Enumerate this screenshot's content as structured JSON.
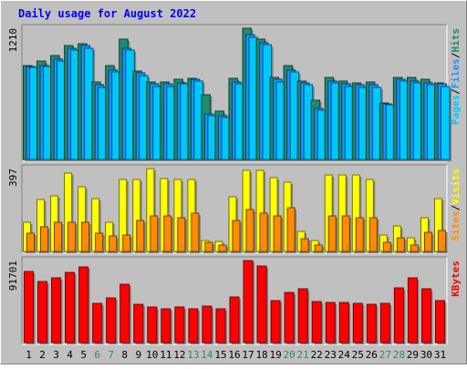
{
  "title": "Daily usage for August 2022",
  "colors": {
    "background": "#c0c0c0",
    "title": "#0000ff",
    "hits": "#1e8c6e",
    "files": "#1e90ff",
    "pages": "#00c8ff",
    "visits": "#ffff00",
    "sites": "#ff8c00",
    "kbytes": "#ff0000",
    "weekday_label": "#000000",
    "weekend_label": "#2e8b57"
  },
  "chart_data": [
    {
      "type": "bar",
      "panel": "hits-files-pages",
      "ymax_label": "1210",
      "legend": [
        "Pages",
        "/",
        "Files",
        "/",
        "Hits"
      ],
      "categories": [
        "1",
        "2",
        "3",
        "4",
        "5",
        "6",
        "7",
        "8",
        "9",
        "10",
        "11",
        "12",
        "13",
        "14",
        "15",
        "16",
        "17",
        "18",
        "19",
        "20",
        "21",
        "22",
        "23",
        "24",
        "25",
        "26",
        "27",
        "28",
        "29",
        "30",
        "31"
      ],
      "weekend_days": [
        "6",
        "7",
        "13",
        "14",
        "20",
        "21",
        "27",
        "28"
      ],
      "series": [
        {
          "name": "Hits",
          "values": [
            860,
            900,
            950,
            1040,
            1060,
            710,
            860,
            1100,
            810,
            710,
            710,
            730,
            740,
            590,
            440,
            740,
            1200,
            1100,
            750,
            860,
            720,
            540,
            750,
            720,
            700,
            710,
            520,
            750,
            750,
            730,
            700
          ]
        },
        {
          "name": "Files",
          "values": [
            850,
            860,
            920,
            1020,
            1040,
            680,
            820,
            1020,
            790,
            690,
            690,
            700,
            730,
            420,
            400,
            710,
            1140,
            1070,
            730,
            820,
            700,
            470,
            720,
            690,
            680,
            680,
            510,
            730,
            720,
            700,
            690
          ]
        },
        {
          "name": "Pages",
          "values": [
            840,
            850,
            900,
            1000,
            1020,
            660,
            800,
            1000,
            770,
            670,
            670,
            690,
            720,
            400,
            380,
            690,
            1120,
            1050,
            710,
            800,
            680,
            450,
            700,
            670,
            660,
            660,
            500,
            720,
            700,
            680,
            670
          ]
        }
      ]
    },
    {
      "type": "bar",
      "panel": "visits-sites",
      "ymax_label": "397",
      "legend": [
        "Sites",
        "/",
        "Visits"
      ],
      "categories": [
        "1",
        "2",
        "3",
        "4",
        "5",
        "6",
        "7",
        "8",
        "9",
        "10",
        "11",
        "12",
        "13",
        "14",
        "15",
        "16",
        "17",
        "18",
        "19",
        "20",
        "21",
        "22",
        "23",
        "24",
        "25",
        "26",
        "27",
        "28",
        "29",
        "30",
        "31"
      ],
      "series": [
        {
          "name": "Visits",
          "values": [
            130,
            230,
            250,
            350,
            290,
            235,
            130,
            320,
            320,
            370,
            325,
            320,
            320,
            50,
            45,
            245,
            360,
            360,
            330,
            310,
            90,
            50,
            340,
            340,
            340,
            320,
            75,
            115,
            60,
            150,
            235
          ]
        },
        {
          "name": "Sites",
          "values": [
            80,
            110,
            130,
            130,
            130,
            80,
            70,
            75,
            140,
            160,
            160,
            150,
            170,
            40,
            30,
            140,
            185,
            170,
            160,
            195,
            55,
            30,
            160,
            160,
            150,
            150,
            40,
            60,
            30,
            85,
            95
          ]
        }
      ]
    },
    {
      "type": "bar",
      "panel": "kbytes",
      "ymax_label": "91701",
      "legend": [
        "KBytes"
      ],
      "categories": [
        "1",
        "2",
        "3",
        "4",
        "5",
        "6",
        "7",
        "8",
        "9",
        "10",
        "11",
        "12",
        "13",
        "14",
        "15",
        "16",
        "17",
        "18",
        "19",
        "20",
        "21",
        "22",
        "23",
        "24",
        "25",
        "26",
        "27",
        "28",
        "29",
        "30",
        "31"
      ],
      "series": [
        {
          "name": "KBytes",
          "values": [
            79000,
            68000,
            72000,
            78000,
            85000,
            44000,
            50000,
            65000,
            43000,
            40000,
            38000,
            40000,
            38000,
            41000,
            38000,
            51000,
            91701,
            86000,
            47000,
            56000,
            60000,
            46000,
            45000,
            45000,
            44000,
            43000,
            44000,
            61000,
            72000,
            60000,
            47000
          ]
        }
      ]
    }
  ]
}
